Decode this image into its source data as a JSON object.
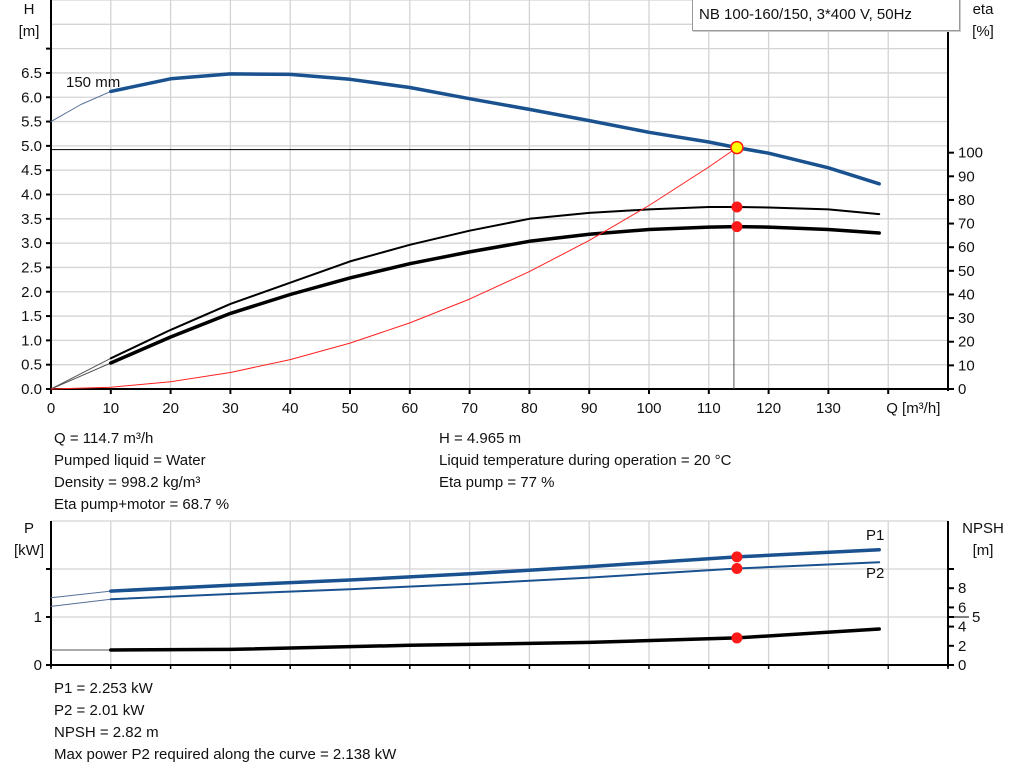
{
  "chart_data": [
    {
      "type": "line",
      "title": "",
      "legend": "NB 100-160/150, 3*400 V, 50Hz",
      "xlabel": "Q [m³/h]",
      "ylabel_left": "H\n[m]",
      "ylabel_left_lines": [
        "H",
        "[m]"
      ],
      "ylabel_right_lines": [
        "eta",
        "[%]"
      ],
      "xlim": [
        0,
        150
      ],
      "ylim_left": [
        0,
        8
      ],
      "ylim_right": [
        0,
        164.6
      ],
      "x_ticks": [
        0,
        10,
        20,
        30,
        40,
        50,
        60,
        70,
        80,
        90,
        100,
        110,
        120,
        130
      ],
      "y_left_ticks": [
        "0.0",
        "0.5",
        "1.0",
        "1.5",
        "2.0",
        "2.5",
        "3.0",
        "3.5",
        "4.0",
        "4.5",
        "5.0",
        "5.5",
        "6.0",
        "6.5"
      ],
      "y_right_ticks": [
        0,
        10,
        20,
        30,
        40,
        50,
        60,
        70,
        80,
        90,
        100
      ],
      "grid": true,
      "curve_label": "150 mm",
      "series": [
        {
          "id": "head",
          "axis": "left",
          "color": "#1a5290",
          "x": [
            0,
            5,
            10
          ],
          "y": [
            5.5,
            5.85,
            6.12
          ],
          "style": "thin"
        },
        {
          "id": "head",
          "axis": "left",
          "color": "#1a5290",
          "x": [
            10,
            20,
            30,
            40,
            50,
            60,
            70,
            80,
            90,
            100,
            110,
            114.7,
            120,
            130,
            138.5
          ],
          "y": [
            6.12,
            6.38,
            6.48,
            6.47,
            6.37,
            6.2,
            5.97,
            5.75,
            5.52,
            5.28,
            5.08,
            4.965,
            4.85,
            4.55,
            4.22
          ],
          "style": "thick"
        },
        {
          "id": "eta-pump",
          "axis": "right",
          "color": "#000000",
          "x": [
            0,
            10
          ],
          "y": [
            0,
            13
          ],
          "style": "thin"
        },
        {
          "id": "eta-pump",
          "axis": "right",
          "color": "#000000",
          "x": [
            10,
            20,
            30,
            40,
            50,
            60,
            70,
            80,
            90,
            100,
            110,
            114.7,
            120,
            130,
            138.5
          ],
          "y": [
            13,
            25,
            36,
            45,
            54,
            61,
            67,
            72,
            74.5,
            76,
            77,
            77,
            76.8,
            76,
            74
          ],
          "style": "medium"
        },
        {
          "id": "eta-pump-motor",
          "axis": "right",
          "color": "#000000",
          "x": [
            0,
            10
          ],
          "y": [
            0,
            11
          ],
          "style": "thin"
        },
        {
          "id": "eta-pump-motor",
          "axis": "right",
          "color": "#000000",
          "x": [
            10,
            20,
            30,
            40,
            50,
            60,
            70,
            80,
            90,
            100,
            110,
            114.7,
            120,
            130,
            138.5
          ],
          "y": [
            11,
            22,
            32,
            40,
            47,
            53,
            58,
            62.5,
            65.5,
            67.5,
            68.5,
            68.7,
            68.5,
            67.5,
            66
          ],
          "style": "thick"
        },
        {
          "id": "system-curve",
          "axis": "left",
          "color": "#ff2020",
          "x": [
            0,
            10,
            20,
            30,
            40,
            50,
            60,
            70,
            80,
            90,
            100,
            110,
            114.7
          ],
          "y": [
            0,
            0.038,
            0.151,
            0.34,
            0.604,
            0.944,
            1.359,
            1.849,
            2.415,
            3.057,
            3.774,
            4.566,
            4.965
          ],
          "style": "thin"
        }
      ],
      "operating_point": {
        "Q": 114.7,
        "H": 4.965,
        "eta_pump": 77,
        "eta_pump_motor": 68.7
      }
    },
    {
      "type": "line",
      "ylabel_left_lines": [
        "P",
        "[kW]"
      ],
      "ylabel_right_lines": [
        "NPSH",
        "[m]"
      ],
      "xlim": [
        0,
        150
      ],
      "ylim_left": [
        0,
        3
      ],
      "ylim_right": [
        0,
        15
      ],
      "y_left_ticks": [
        0,
        1
      ],
      "y_right_ticks": [
        0,
        2,
        4,
        5,
        6,
        8
      ],
      "grid": true,
      "series": [
        {
          "id": "P1",
          "name": "P1",
          "axis": "left",
          "color": "#1a5290",
          "x": [
            0,
            10
          ],
          "y": [
            1.4,
            1.54
          ],
          "style": "thin"
        },
        {
          "id": "P1",
          "name": "P1",
          "axis": "left",
          "color": "#1a5290",
          "x": [
            10,
            30,
            50,
            70,
            90,
            114.7,
            138.5
          ],
          "y": [
            1.54,
            1.66,
            1.77,
            1.9,
            2.05,
            2.253,
            2.4
          ],
          "style": "thick"
        },
        {
          "id": "P2",
          "name": "P2",
          "axis": "left",
          "color": "#1a5290",
          "x": [
            0,
            10
          ],
          "y": [
            1.22,
            1.37
          ],
          "style": "thin"
        },
        {
          "id": "P2",
          "name": "P2",
          "axis": "left",
          "color": "#1a5290",
          "x": [
            10,
            30,
            50,
            70,
            90,
            114.7,
            138.5
          ],
          "y": [
            1.37,
            1.48,
            1.58,
            1.69,
            1.82,
            2.01,
            2.14
          ],
          "style": "medium"
        },
        {
          "id": "NPSH",
          "axis": "right",
          "color": "#000000",
          "x": [
            0,
            10
          ],
          "y": [
            1.56,
            1.56
          ],
          "style": "thin"
        },
        {
          "id": "NPSH",
          "axis": "right",
          "color": "#000000",
          "x": [
            10,
            30,
            60,
            90,
            114.7,
            138.5
          ],
          "y": [
            1.56,
            1.62,
            2.05,
            2.35,
            2.82,
            3.75
          ],
          "style": "thick"
        }
      ],
      "operating_point": {
        "Q": 114.7,
        "P1": 2.253,
        "P2": 2.01,
        "NPSH": 2.82
      }
    }
  ],
  "info_top_left": [
    "Q = 114.7 m³/h",
    "Pumped liquid = Water",
    "Density = 998.2 kg/m³",
    "Eta pump+motor = 68.7 %"
  ],
  "info_top_right": [
    "H = 4.965 m",
    "Liquid temperature during operation = 20 °C",
    "Eta pump = 77 %"
  ],
  "info_bottom": [
    "P1 = 2.253 kW",
    "P2 = 2.01 kW",
    "NPSH = 2.82 m",
    "Max power P2 required along the curve = 2.138 kW"
  ],
  "colors": {
    "head": "#1a5290",
    "system": "#ff2020",
    "marker": "#ff1a1a",
    "op_fill": "#ffff00",
    "grid": "#d4d4d4"
  }
}
